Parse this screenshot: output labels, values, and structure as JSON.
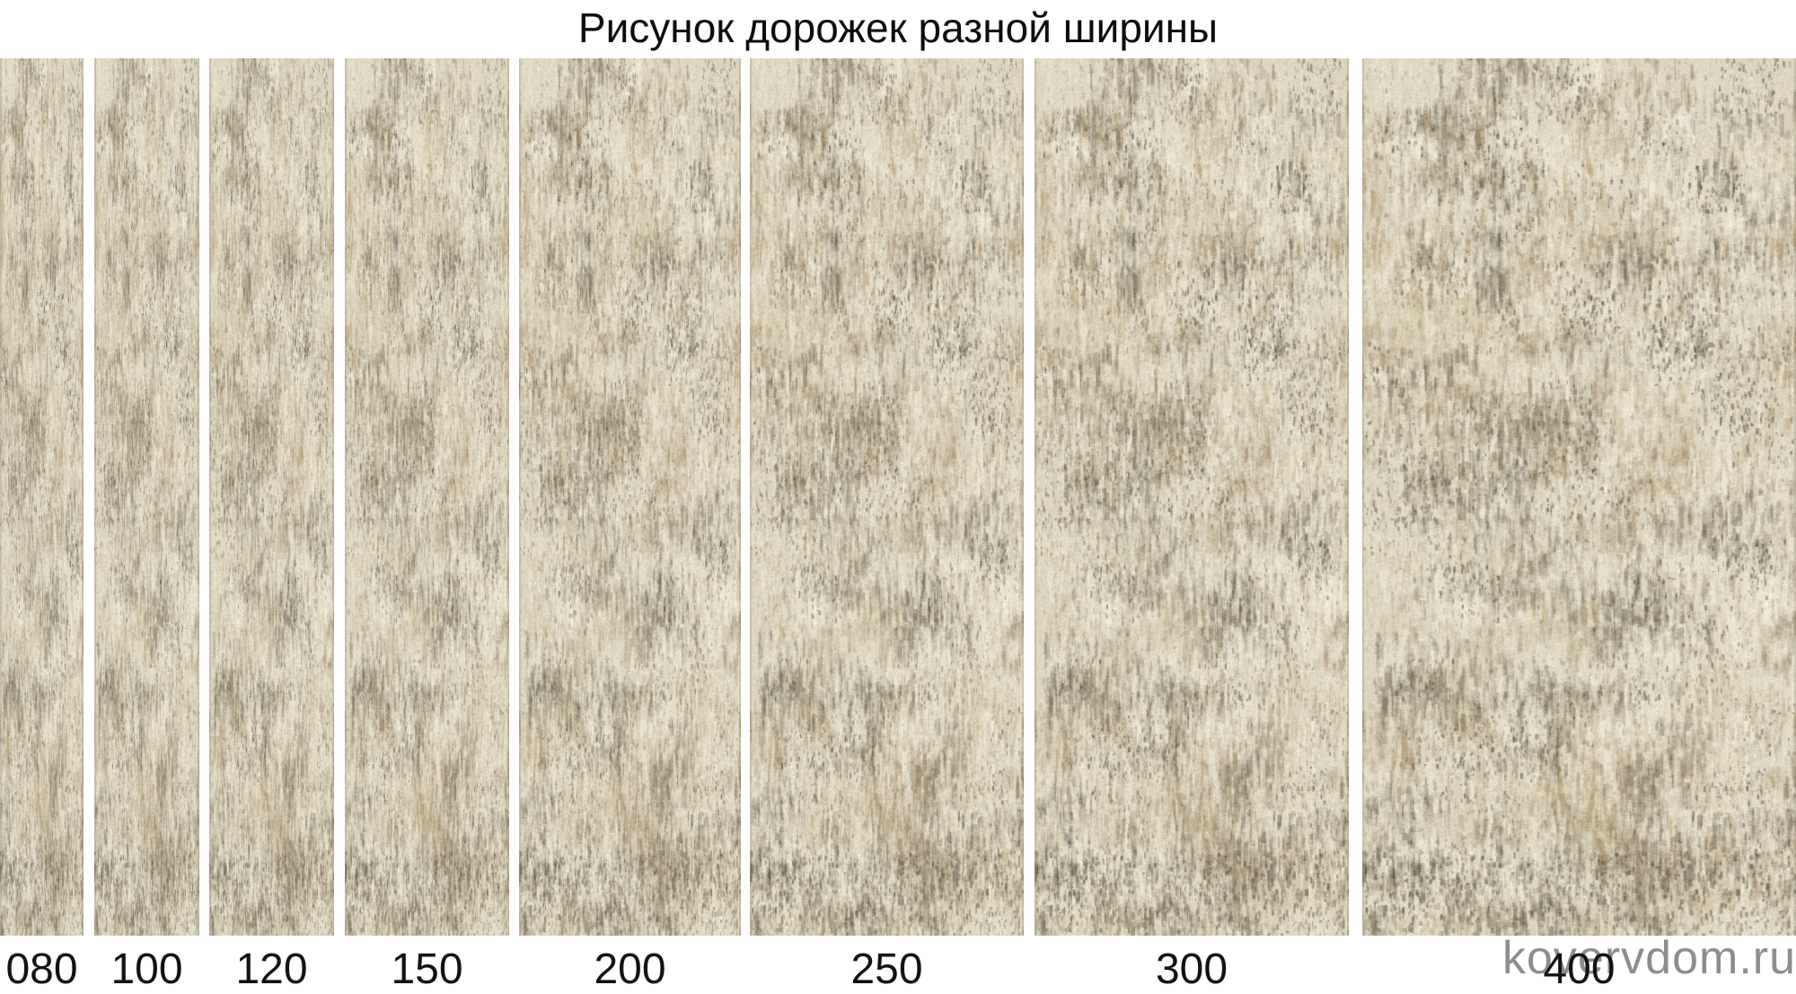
{
  "title": "Рисунок дорожек разной ширины",
  "watermark": "kovervdom.ru",
  "strips": [
    {
      "label": "080",
      "width_cm": 80
    },
    {
      "label": "100",
      "width_cm": 100
    },
    {
      "label": "120",
      "width_cm": 120
    },
    {
      "label": "150",
      "width_cm": 150
    },
    {
      "label": "200",
      "width_cm": 200
    },
    {
      "label": "250",
      "width_cm": 250
    },
    {
      "label": "300",
      "width_cm": 300
    },
    {
      "label": "400",
      "width_cm": 400
    }
  ],
  "colors": {
    "background": "#ffffff",
    "title_text": "#0d0d0d",
    "label_text": "#121212",
    "watermark_text": "#8d8d8d",
    "carpet_base": "#ded6c0",
    "carpet_palette": [
      "#3e392e",
      "#5a523f",
      "#756b54",
      "#92836a",
      "#ad9570",
      "#c3ad85",
      "#d7cbae",
      "#eae4d0",
      "#f4efdd"
    ]
  }
}
